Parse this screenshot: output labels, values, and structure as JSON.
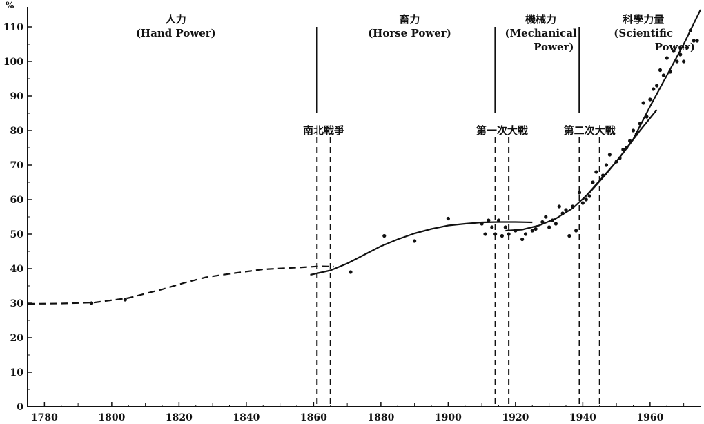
{
  "chart_data": {
    "type": "line",
    "title": "",
    "xlabel": "",
    "ylabel": "",
    "y_unit": "%",
    "xlim": [
      1775,
      1975
    ],
    "ylim": [
      0,
      115
    ],
    "x_ticks": [
      1780,
      1800,
      1820,
      1840,
      1860,
      1880,
      1900,
      1920,
      1940,
      1960
    ],
    "y_ticks": [
      0,
      10,
      20,
      30,
      40,
      50,
      60,
      70,
      80,
      90,
      100,
      110
    ],
    "grid": false,
    "eras": [
      {
        "cn": "人力",
        "en": [
          "(Hand Power)"
        ],
        "x_start": 1775,
        "x_end": 1861
      },
      {
        "cn": "畜力",
        "en": [
          "(Horse Power)"
        ],
        "x_start": 1861,
        "x_end": 1914
      },
      {
        "cn": "機械力",
        "en": [
          "(Mechanical",
          "Power)"
        ],
        "x_start": 1914,
        "x_end": 1939
      },
      {
        "cn": "科學力量",
        "en": [
          "(Scientific",
          "Power)"
        ],
        "x_start": 1939,
        "x_end": 1975
      }
    ],
    "events": [
      {
        "label": "南北戰爭",
        "x_start": 1861,
        "x_end": 1865
      },
      {
        "label": "第一次大戰",
        "x_start": 1914,
        "x_end": 1918
      },
      {
        "label": "第二次大戰",
        "x_start": 1939,
        "x_end": 1945
      }
    ],
    "series": [
      {
        "style": "dashed",
        "x": [
          1775,
          1785,
          1795,
          1805,
          1815,
          1822,
          1828,
          1835,
          1845,
          1855,
          1862,
          1866
        ],
        "y": [
          29.8,
          29.9,
          30.2,
          31.5,
          34,
          36,
          37.5,
          38.5,
          39.8,
          40.3,
          40.7,
          40.6
        ]
      },
      {
        "style": "solid",
        "x": [
          1859,
          1865,
          1870,
          1875,
          1880,
          1885,
          1890,
          1895,
          1900,
          1905,
          1910,
          1915,
          1920,
          1925
        ],
        "y": [
          38.2,
          39.5,
          41.5,
          44,
          46.5,
          48.5,
          50.2,
          51.5,
          52.5,
          53,
          53.4,
          53.5,
          53.5,
          53.4
        ]
      },
      {
        "style": "solid",
        "x": [
          1917,
          1922,
          1927,
          1932,
          1937,
          1942,
          1947,
          1952,
          1957,
          1962
        ],
        "y": [
          51,
          51.3,
          52.5,
          54.5,
          57.5,
          62,
          67.5,
          73.5,
          80,
          86
        ]
      },
      {
        "style": "solid",
        "x": [
          1940,
          1945,
          1950,
          1955,
          1960,
          1965,
          1970,
          1975
        ],
        "y": [
          60,
          65.5,
          71,
          77.5,
          87,
          96,
          105,
          115
        ]
      }
    ],
    "points": {
      "x": [
        1794,
        1804,
        1871,
        1881,
        1890,
        1900,
        1910,
        1911,
        1912,
        1913,
        1914,
        1915,
        1916,
        1917,
        1918,
        1920,
        1922,
        1923,
        1925,
        1926,
        1928,
        1929,
        1930,
        1931,
        1932,
        1933,
        1934,
        1935,
        1936,
        1937,
        1938,
        1939,
        1940,
        1941,
        1942,
        1943,
        1944,
        1946,
        1947,
        1948,
        1950,
        1951,
        1952,
        1953,
        1954,
        1955,
        1956,
        1957,
        1958,
        1959,
        1960,
        1961,
        1962,
        1963,
        1964,
        1965,
        1966,
        1967,
        1968,
        1969,
        1970,
        1971,
        1972,
        1973,
        1974
      ],
      "y": [
        30,
        31,
        39,
        49.5,
        48,
        54.5,
        53,
        50,
        54,
        52,
        50,
        54,
        49.5,
        52,
        50,
        51,
        48.5,
        50,
        51,
        51.5,
        53.5,
        55,
        52,
        54,
        53,
        58,
        56,
        57,
        49.5,
        58,
        51,
        62,
        59,
        60,
        61,
        65,
        68,
        67,
        70,
        73,
        71,
        72,
        74.5,
        75,
        77,
        80,
        79,
        82,
        88,
        84,
        89,
        92,
        93,
        97.5,
        96,
        101,
        97,
        103,
        100,
        102,
        100,
        104,
        109,
        106,
        106
      ]
    }
  }
}
